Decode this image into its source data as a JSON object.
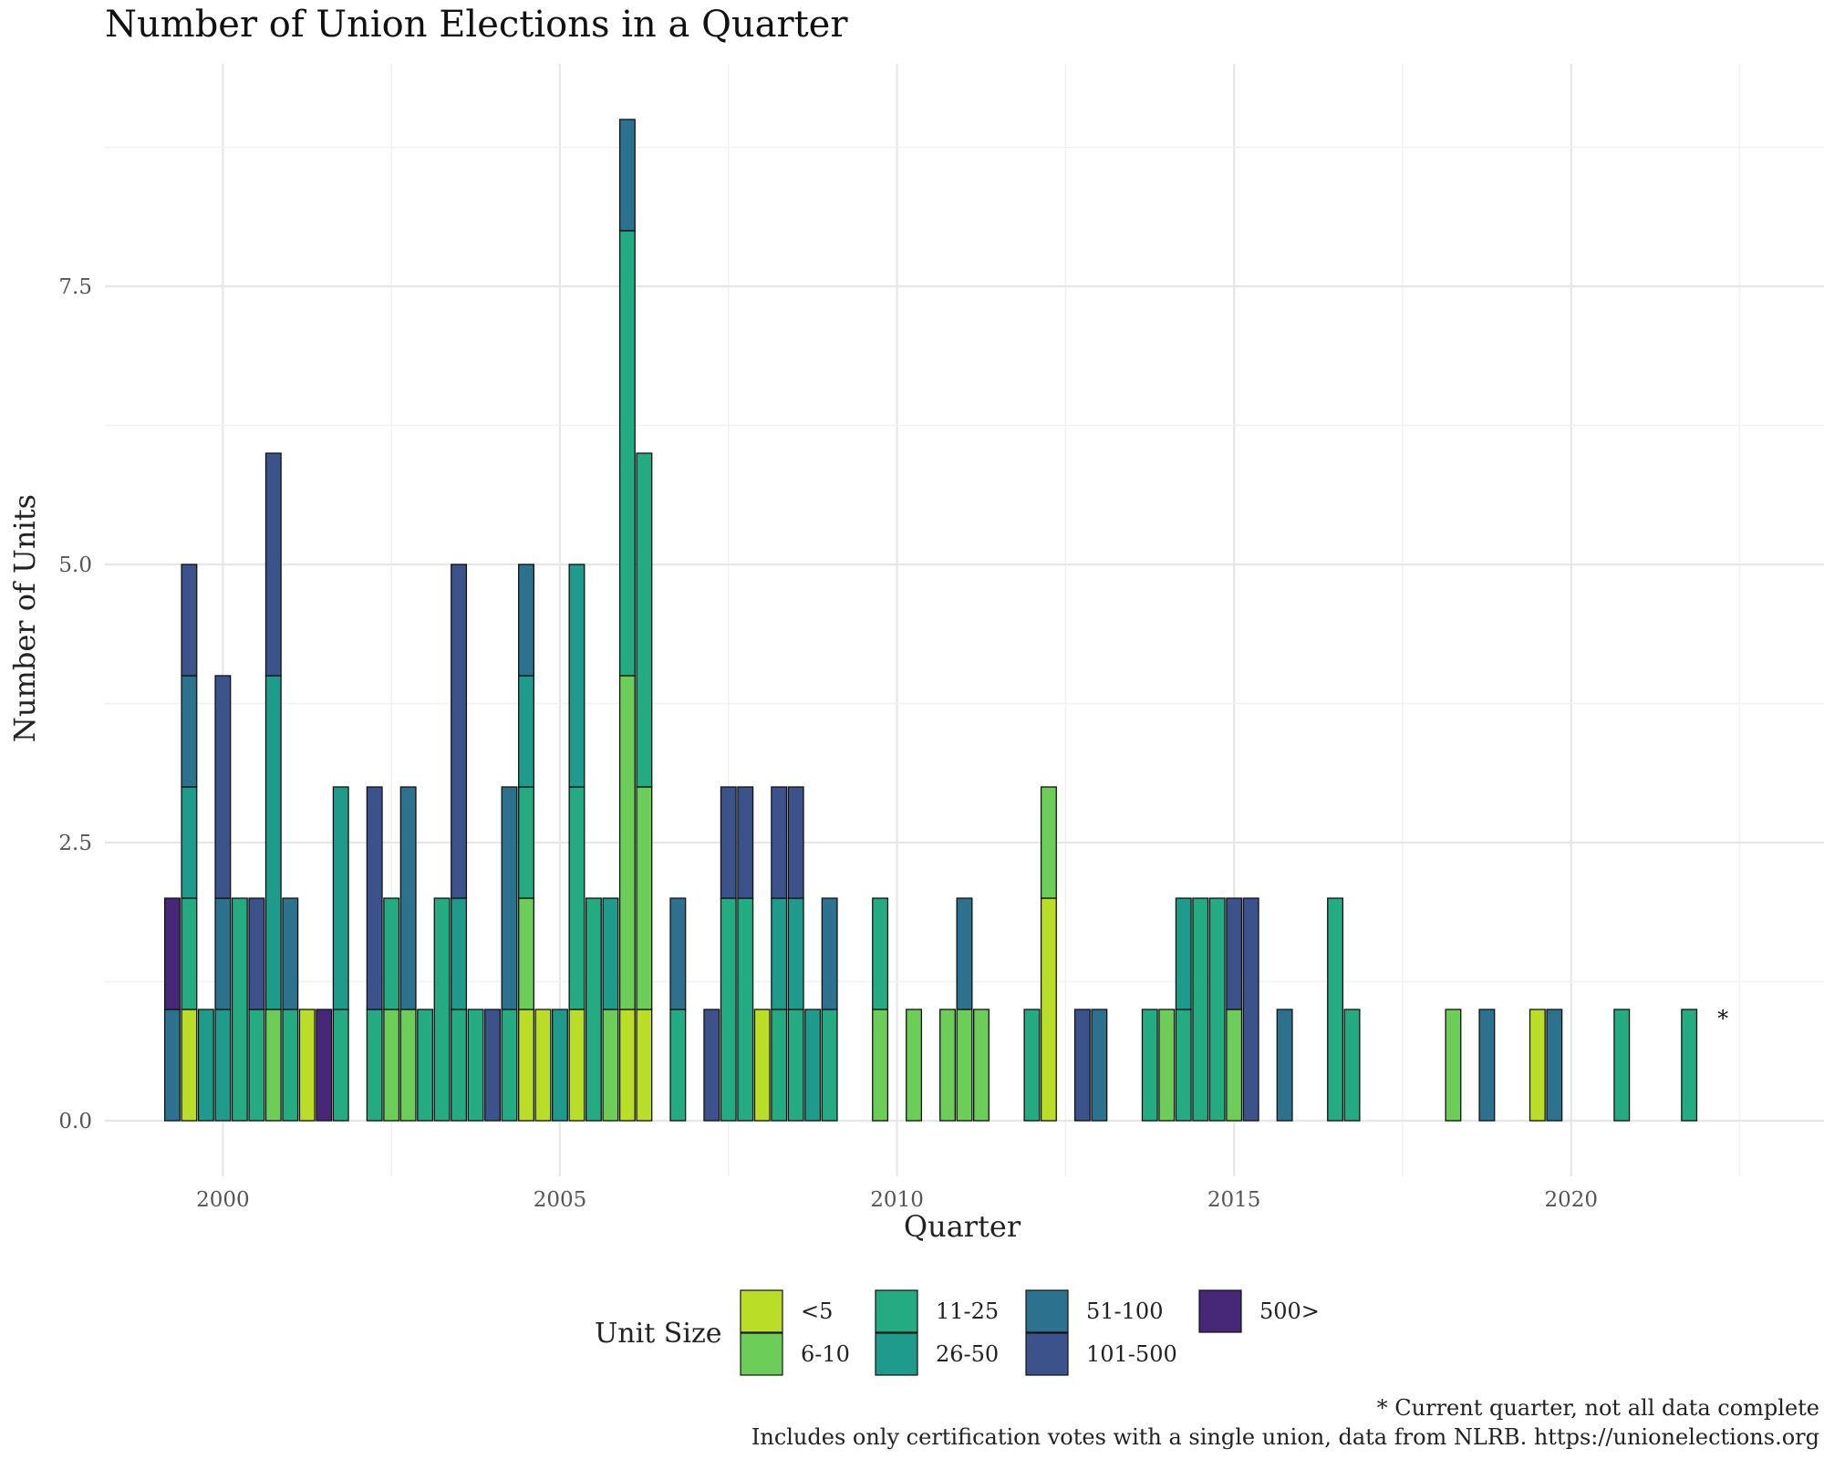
{
  "chart_data": {
    "type": "bar",
    "stacked": true,
    "title": "Number of Union Elections in a Quarter",
    "xlabel": "Quarter",
    "ylabel": "Number of Units",
    "x_ticks": [
      "2000",
      "2005",
      "2010",
      "2015",
      "2020"
    ],
    "y_ticks": [
      "0.0",
      "2.5",
      "5.0",
      "7.5"
    ],
    "xlim": [
      1998.25,
      2023.75
    ],
    "ylim": [
      -0.5,
      9.5
    ],
    "grid": true,
    "legend_title": "Unit Size",
    "legend_position": "bottom",
    "categories": [
      {
        "key": "s5",
        "label": "<5",
        "color": "#BADE28"
      },
      {
        "key": "s10",
        "label": "6-10",
        "color": "#6CCE59"
      },
      {
        "key": "s25",
        "label": "11-25",
        "color": "#25AB82"
      },
      {
        "key": "s50",
        "label": "26-50",
        "color": "#1E9B8A"
      },
      {
        "key": "s100",
        "label": "51-100",
        "color": "#2C728E"
      },
      {
        "key": "s500",
        "label": "101-500",
        "color": "#3B528B"
      },
      {
        "key": "s500p",
        "label": "500>",
        "color": "#472878"
      }
    ],
    "stack_order": [
      "s5",
      "s10",
      "s25",
      "s50",
      "s100",
      "s500",
      "s500p"
    ],
    "bars": [
      {
        "q": 1999.25,
        "s100": 1,
        "s500p": 1
      },
      {
        "q": 1999.5,
        "s5": 1,
        "s25": 1,
        "s50": 1,
        "s100": 1,
        "s500": 1
      },
      {
        "q": 1999.75,
        "s50": 1
      },
      {
        "q": 2000.0,
        "s50": 1,
        "s100": 1,
        "s500": 2
      },
      {
        "q": 2000.25,
        "s25": 2
      },
      {
        "q": 2000.5,
        "s25": 1,
        "s500": 1
      },
      {
        "q": 2000.75,
        "s10": 1,
        "s50": 3,
        "s500": 2
      },
      {
        "q": 2001.0,
        "s25": 1,
        "s100": 1
      },
      {
        "q": 2001.25,
        "s5": 1
      },
      {
        "q": 2001.5,
        "s500p": 1
      },
      {
        "q": 2001.75,
        "s25": 1,
        "s50": 2
      },
      {
        "q": 2002.25,
        "s25": 1,
        "s500": 2
      },
      {
        "q": 2002.5,
        "s10": 1,
        "s25": 1
      },
      {
        "q": 2002.75,
        "s10": 1,
        "s100": 2
      },
      {
        "q": 2003.0,
        "s25": 1
      },
      {
        "q": 2003.25,
        "s25": 2
      },
      {
        "q": 2003.5,
        "s25": 1,
        "s50": 1,
        "s500": 3
      },
      {
        "q": 2003.75,
        "s25": 1
      },
      {
        "q": 2004.0,
        "s500": 1
      },
      {
        "q": 2004.25,
        "s25": 1,
        "s100": 2
      },
      {
        "q": 2004.5,
        "s5": 1,
        "s10": 1,
        "s25": 1,
        "s50": 1,
        "s100": 1
      },
      {
        "q": 2004.75,
        "s5": 1
      },
      {
        "q": 2005.0,
        "s50": 1
      },
      {
        "q": 2005.25,
        "s5": 1,
        "s25": 2,
        "s50": 2
      },
      {
        "q": 2005.5,
        "s25": 2
      },
      {
        "q": 2005.75,
        "s10": 1,
        "s50": 1
      },
      {
        "q": 2006.0,
        "s5": 1,
        "s10": 3,
        "s25": 4,
        "s100": 1
      },
      {
        "q": 2006.25,
        "s5": 1,
        "s10": 2,
        "s25": 3
      },
      {
        "q": 2006.75,
        "s25": 1,
        "s100": 1
      },
      {
        "q": 2007.25,
        "s500": 1
      },
      {
        "q": 2007.5,
        "s25": 2,
        "s500": 1
      },
      {
        "q": 2007.75,
        "s25": 2,
        "s500": 1
      },
      {
        "q": 2008.0,
        "s5": 1
      },
      {
        "q": 2008.25,
        "s25": 1,
        "s50": 1,
        "s500": 1
      },
      {
        "q": 2008.5,
        "s25": 1,
        "s50": 1,
        "s500": 1
      },
      {
        "q": 2008.75,
        "s50": 1
      },
      {
        "q": 2009.0,
        "s25": 1,
        "s100": 1
      },
      {
        "q": 2009.75,
        "s10": 1,
        "s25": 1
      },
      {
        "q": 2010.25,
        "s10": 1
      },
      {
        "q": 2010.75,
        "s10": 1
      },
      {
        "q": 2011.0,
        "s10": 1,
        "s100": 1
      },
      {
        "q": 2011.25,
        "s10": 1
      },
      {
        "q": 2012.0,
        "s25": 1
      },
      {
        "q": 2012.25,
        "s5": 2,
        "s10": 1
      },
      {
        "q": 2012.75,
        "s500": 1
      },
      {
        "q": 2013.0,
        "s100": 1
      },
      {
        "q": 2013.75,
        "s25": 1
      },
      {
        "q": 2014.0,
        "s10": 1
      },
      {
        "q": 2014.25,
        "s25": 1,
        "s50": 1
      },
      {
        "q": 2014.5,
        "s25": 2
      },
      {
        "q": 2014.75,
        "s25": 2
      },
      {
        "q": 2015.0,
        "s10": 1,
        "s500": 1
      },
      {
        "q": 2015.25,
        "s500": 2
      },
      {
        "q": 2015.75,
        "s100": 1
      },
      {
        "q": 2016.5,
        "s25": 2
      },
      {
        "q": 2016.75,
        "s25": 1
      },
      {
        "q": 2018.25,
        "s10": 1
      },
      {
        "q": 2018.75,
        "s100": 1
      },
      {
        "q": 2019.5,
        "s5": 1
      },
      {
        "q": 2019.75,
        "s100": 1
      },
      {
        "q": 2020.75,
        "s25": 1
      },
      {
        "q": 2021.75,
        "s25": 1
      }
    ],
    "annotation": {
      "text": "*",
      "x": 2022.25,
      "y": 1
    }
  },
  "caption": {
    "line1": "* Current quarter, not all data complete",
    "line2": "Includes only certification votes with a single union, data from NLRB. https://unionelections.org"
  }
}
